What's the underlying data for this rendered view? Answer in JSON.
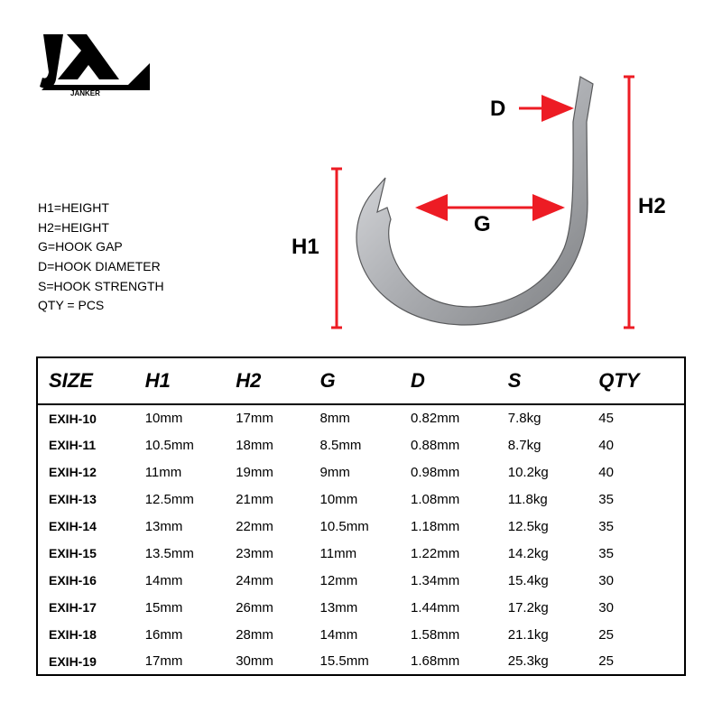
{
  "brand": "JANKER",
  "legend": {
    "l1": "H1=HEIGHT",
    "l2": "H2=HEIGHT",
    "l3": "G=HOOK GAP",
    "l4": "D=HOOK DIAMETER",
    "l5": "S=HOOK STRENGTH",
    "l6": "QTY = PCS"
  },
  "diagram": {
    "d_label": "D",
    "g_label": "G",
    "h1_label": "H1",
    "h2_label": "H2",
    "colors": {
      "dim_line": "#ed1c24",
      "hook_fill": "#b9babe",
      "hook_edge": "#58595b"
    }
  },
  "table": {
    "columns": [
      "SIZE",
      "H1",
      "H2",
      "G",
      "D",
      "S",
      "QTY"
    ],
    "col_widths_pct": [
      15,
      14,
      13,
      14,
      15,
      14,
      15
    ],
    "header_fontsize": 22,
    "header_italic": true,
    "body_fontsize": 15,
    "border_color": "#000000",
    "rows": [
      {
        "size": "EXIH-10",
        "h1": "10mm",
        "h2": "17mm",
        "g": "8mm",
        "d": "0.82mm",
        "s": "7.8kg",
        "qty": "45"
      },
      {
        "size": "EXIH-11",
        "h1": "10.5mm",
        "h2": "18mm",
        "g": "8.5mm",
        "d": "0.88mm",
        "s": "8.7kg",
        "qty": "40"
      },
      {
        "size": "EXIH-12",
        "h1": "11mm",
        "h2": "19mm",
        "g": "9mm",
        "d": "0.98mm",
        "s": "10.2kg",
        "qty": "40"
      },
      {
        "size": "EXIH-13",
        "h1": "12.5mm",
        "h2": "21mm",
        "g": "10mm",
        "d": "1.08mm",
        "s": "11.8kg",
        "qty": "35"
      },
      {
        "size": "EXIH-14",
        "h1": "13mm",
        "h2": "22mm",
        "g": "10.5mm",
        "d": "1.18mm",
        "s": "12.5kg",
        "qty": "35"
      },
      {
        "size": "EXIH-15",
        "h1": "13.5mm",
        "h2": "23mm",
        "g": "11mm",
        "d": "1.22mm",
        "s": "14.2kg",
        "qty": "35"
      },
      {
        "size": "EXIH-16",
        "h1": "14mm",
        "h2": "24mm",
        "g": "12mm",
        "d": "1.34mm",
        "s": "15.4kg",
        "qty": "30"
      },
      {
        "size": "EXIH-17",
        "h1": "15mm",
        "h2": "26mm",
        "g": "13mm",
        "d": "1.44mm",
        "s": "17.2kg",
        "qty": "30"
      },
      {
        "size": "EXIH-18",
        "h1": "16mm",
        "h2": "28mm",
        "g": "14mm",
        "d": "1.58mm",
        "s": "21.1kg",
        "qty": "25"
      },
      {
        "size": "EXIH-19",
        "h1": "17mm",
        "h2": "30mm",
        "g": "15.5mm",
        "d": "1.68mm",
        "s": "25.3kg",
        "qty": "25"
      }
    ]
  }
}
